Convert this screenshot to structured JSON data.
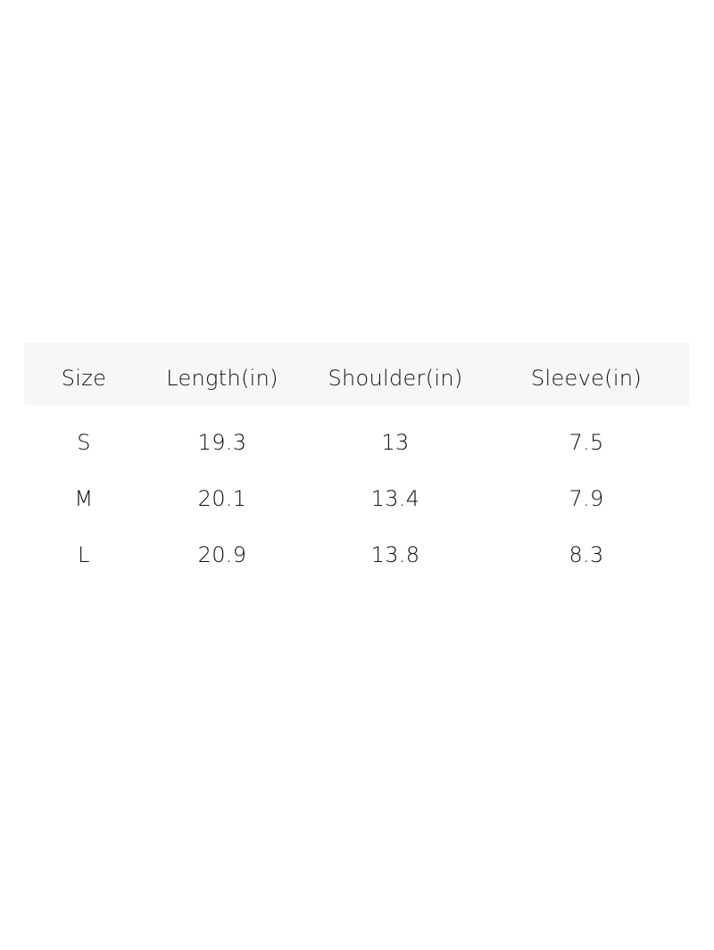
{
  "table": {
    "headers": [
      "Size",
      "Length(in)",
      "Shoulder(in)",
      "Sleeve(in)"
    ],
    "rows": [
      [
        "S",
        "19.3",
        "13",
        "7.5"
      ],
      [
        "M",
        "20.1",
        "13.4",
        "7.9"
      ],
      [
        "L",
        "20.9",
        "13.8",
        "8.3"
      ]
    ],
    "header_background": "#f7f7f7"
  }
}
